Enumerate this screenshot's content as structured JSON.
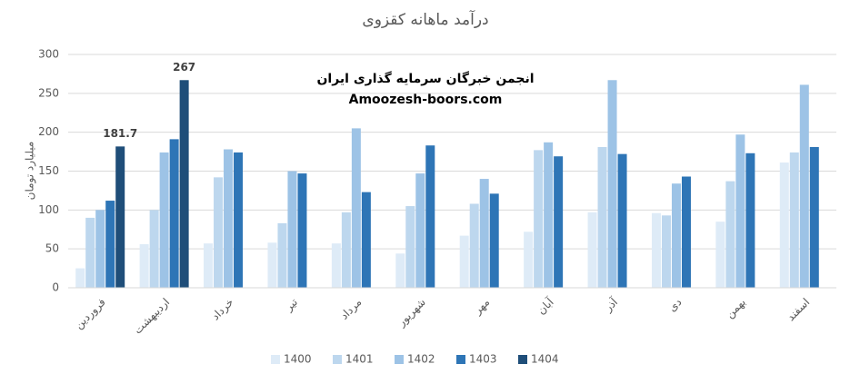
{
  "chart_data": {
    "type": "bar",
    "title": "درآمد ماهانه کقزوی",
    "y_label": "میلیارد تومان",
    "annotations": [
      "انجمن خبرگان سرمایه گذاری ایران",
      "Amoozesh-boors.com"
    ],
    "categories": [
      "فروردین",
      "اردیبهشت",
      "خرداد",
      "تیر",
      "مرداد",
      "شهریور",
      "مهر",
      "آبان",
      "آذر",
      "دی",
      "بهمن",
      "اسفند"
    ],
    "series": [
      {
        "name": "1400",
        "color": "#deebf7",
        "values": [
          25,
          56,
          57,
          58,
          57,
          44,
          67,
          72,
          97,
          96,
          85,
          161
        ]
      },
      {
        "name": "1401",
        "color": "#bdd7ee",
        "values": [
          90,
          100,
          142,
          83,
          97,
          105,
          108,
          177,
          181,
          93,
          137,
          174
        ]
      },
      {
        "name": "1402",
        "color": "#9dc3e6",
        "values": [
          100,
          174,
          178,
          150,
          205,
          147,
          140,
          187,
          267,
          134,
          197,
          261
        ]
      },
      {
        "name": "1403",
        "color": "#2e75b6",
        "values": [
          112,
          191,
          174,
          147,
          123,
          183,
          121,
          169,
          172,
          143,
          173,
          181
        ]
      },
      {
        "name": "1404",
        "color": "#1f4e79",
        "values": [
          181.7,
          267,
          null,
          null,
          null,
          null,
          null,
          null,
          null,
          null,
          null,
          null
        ],
        "data_labels": true
      }
    ],
    "ylim": [
      0,
      300
    ],
    "yticks": [
      0,
      50,
      100,
      150,
      200,
      250,
      300
    ],
    "grid": true,
    "legend": "bottom"
  }
}
